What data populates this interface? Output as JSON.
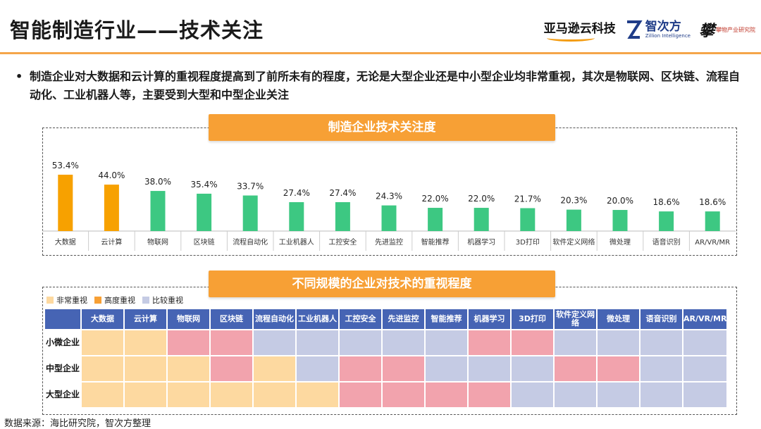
{
  "header": {
    "title": "智能制造行业——技术关注",
    "logos": {
      "amazon": "亚马逊云科技",
      "zhici_cn": "智次方",
      "zhici_en": "Zillion Intelligence",
      "pan_mark": "攀",
      "pan_sub": "攀物产业研究院"
    }
  },
  "bullet": {
    "text": "制造企业对大数据和云计算的重视程度提高到了前所未有的程度，无论是大型企业还是中小型企业均非常重视，其次是物联网、区块链、流程自动化、工业机器人等，主要受到大型和中型企业关注"
  },
  "colors": {
    "highlight": "#f7a100",
    "normal": "#3dc882",
    "very_important": "#fdd9a0",
    "highly_important": "#f7a035",
    "fairly_important": "#c5cbe4",
    "pink": "#f2a3ad",
    "header_blue": "#4664b4"
  },
  "chart_data": [
    {
      "type": "bar",
      "title": "制造企业技术关注度",
      "categories": [
        "大数据",
        "云计算",
        "物联网",
        "区块链",
        "流程自动化",
        "工业机器人",
        "工控安全",
        "先进监控",
        "智能推荐",
        "机器学习",
        "3D打印",
        "软件定义网络",
        "微处理",
        "语音识别",
        "AR/VR/MR"
      ],
      "values": [
        53.4,
        44.0,
        38.0,
        35.4,
        33.7,
        27.4,
        27.4,
        24.3,
        22.0,
        22.0,
        21.7,
        20.3,
        20.0,
        18.6,
        18.6
      ],
      "value_labels": [
        "53.4%",
        "44.0%",
        "38.0%",
        "35.4%",
        "33.7%",
        "27.4%",
        "27.4%",
        "24.3%",
        "22.0%",
        "22.0%",
        "21.7%",
        "20.3%",
        "20.0%",
        "18.6%",
        "18.6%"
      ],
      "highlight_count": 2,
      "ylim": [
        0,
        60
      ],
      "xlabel": "",
      "ylabel": ""
    },
    {
      "type": "heatmap",
      "title": "不同规模的企业对技术的重视程度",
      "legend": [
        {
          "label": "非常重视",
          "color": "#fdd9a0"
        },
        {
          "label": "高度重视",
          "color": "#f7a035"
        },
        {
          "label": "比较重视",
          "color": "#c5cbe4"
        }
      ],
      "columns": [
        "大数据",
        "云计算",
        "物联网",
        "区块链",
        "流程自动化",
        "工业机器人",
        "工控安全",
        "先进监控",
        "智能推荐",
        "机器学习",
        "3D打印",
        "软件定义网络",
        "微处理",
        "语音识别",
        "AR/VR/MR"
      ],
      "rows": [
        {
          "label": "小微企业",
          "cells": [
            "peach",
            "peach",
            "pink",
            "pink",
            "lav",
            "lav",
            "lav",
            "lav",
            "lav",
            "pink",
            "pink",
            "lav",
            "lav",
            "lav",
            "lav"
          ]
        },
        {
          "label": "中型企业",
          "cells": [
            "peach",
            "peach",
            "peach",
            "pink",
            "peach",
            "lav",
            "pink",
            "pink",
            "lav",
            "lav",
            "lav",
            "pink",
            "pink",
            "lav",
            "lav"
          ]
        },
        {
          "label": "大型企业",
          "cells": [
            "peach",
            "peach",
            "peach",
            "peach",
            "peach",
            "peach",
            "pink",
            "pink",
            "pink",
            "pink",
            "lav",
            "lav",
            "lav",
            "lav",
            "lav"
          ]
        }
      ]
    }
  ],
  "source": "数据来源：海比研究院，智次方整理"
}
